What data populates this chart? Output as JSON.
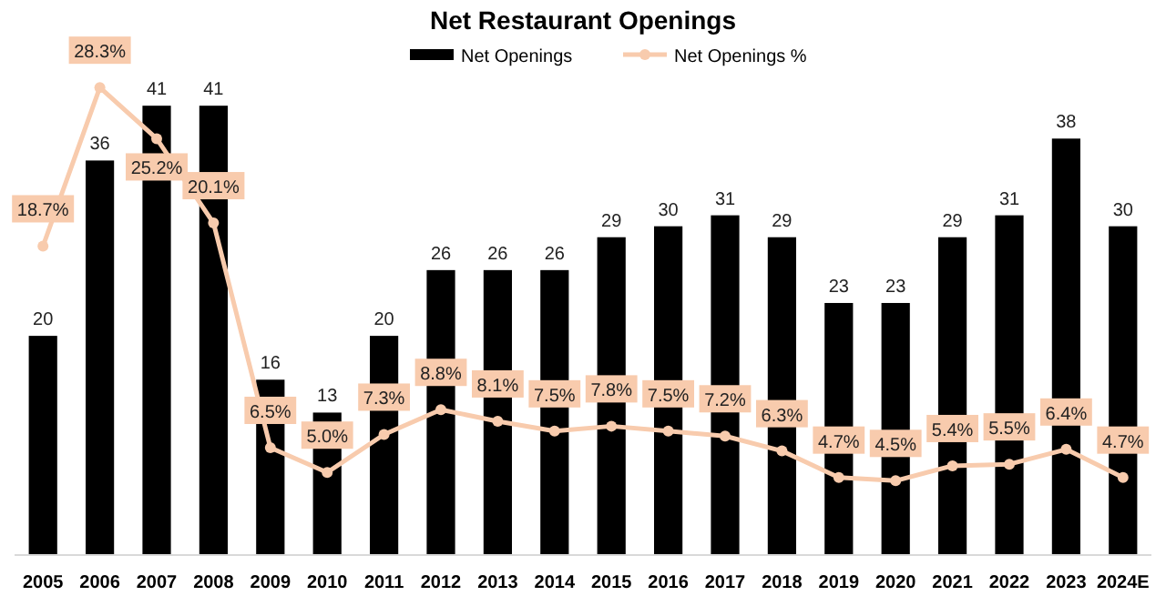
{
  "chart_data": {
    "type": "bar",
    "title": "Net Restaurant Openings",
    "categories": [
      "2005",
      "2006",
      "2007",
      "2008",
      "2009",
      "2010",
      "2011",
      "2012",
      "2013",
      "2014",
      "2015",
      "2016",
      "2017",
      "2018",
      "2019",
      "2020",
      "2021",
      "2022",
      "2023",
      "2024E"
    ],
    "series": [
      {
        "name": "Net Openings",
        "color": "#000000",
        "values": [
          20,
          36,
          41,
          41,
          16,
          13,
          20,
          26,
          26,
          26,
          29,
          30,
          31,
          29,
          23,
          23,
          29,
          31,
          38,
          30
        ]
      },
      {
        "name": "Net Openings %",
        "type": "line",
        "axis": "y2",
        "color": "#f8cbad",
        "marker": "circle",
        "values": [
          18.7,
          28.3,
          25.2,
          20.1,
          6.5,
          5.0,
          7.3,
          8.8,
          8.1,
          7.5,
          7.8,
          7.5,
          7.2,
          6.3,
          4.7,
          4.5,
          5.4,
          5.5,
          6.4,
          4.7
        ],
        "value_labels": [
          "18.7%",
          "28.3%",
          "25.2%",
          "20.1%",
          "6.5%",
          "5.0%",
          "7.3%",
          "8.8%",
          "8.1%",
          "7.5%",
          "7.8%",
          "7.5%",
          "7.2%",
          "6.3%",
          "4.7%",
          "4.5%",
          "5.4%",
          "5.5%",
          "6.4%",
          "4.7%"
        ]
      }
    ],
    "data_labels": true,
    "legend": "top",
    "tick_labels": "x"
  }
}
